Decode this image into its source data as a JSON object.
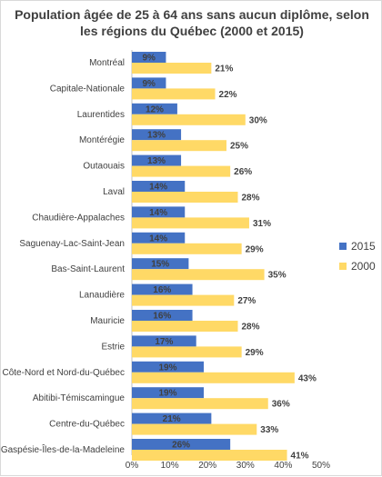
{
  "chart_data": {
    "type": "bar",
    "orientation": "horizontal",
    "title_lines": [
      "Population âgée de 25 à 64 ans sans aucun diplôme, selon",
      "les régions du Québec (2000 et 2015)"
    ],
    "categories": [
      "Montréal",
      "Capitale-Nationale",
      "Laurentides",
      "Montérégie",
      "Outaouais",
      "Laval",
      "Chaudière-Appalaches",
      "Saguenay-Lac-Saint-Jean",
      "Bas-Saint-Laurent",
      "Lanaudière",
      "Mauricie",
      "Estrie",
      "Côte-Nord et Nord-du-Québec",
      "Abitibi-Témiscamingue",
      "Centre-du-Québec",
      "Gaspésie-Îles-de-la-Madeleine"
    ],
    "series": [
      {
        "name": "2015",
        "color": "#4472c4",
        "values": [
          9,
          9,
          12,
          13,
          13,
          14,
          14,
          14,
          15,
          16,
          16,
          17,
          19,
          19,
          21,
          26
        ],
        "labels": [
          "9%",
          "9%",
          "12%",
          "13%",
          "13%",
          "14%",
          "14%",
          "14%",
          "15%",
          "16%",
          "16%",
          "17%",
          "19%",
          "19%",
          "21%",
          "26%"
        ]
      },
      {
        "name": "2000",
        "color": "#ffd966",
        "values": [
          21,
          22,
          30,
          25,
          26,
          28,
          31,
          29,
          35,
          27,
          28,
          29,
          43,
          36,
          33,
          41
        ],
        "labels": [
          "21%",
          "22%",
          "30%",
          "25%",
          "26%",
          "28%",
          "31%",
          "29%",
          "35%",
          "27%",
          "28%",
          "29%",
          "43%",
          "36%",
          "33%",
          "41%"
        ]
      }
    ],
    "xlim": [
      0,
      50
    ],
    "x_ticks": [
      "0%",
      "10%",
      "20%",
      "30%",
      "40%",
      "50%"
    ],
    "grid": false,
    "legend_position": "right"
  }
}
